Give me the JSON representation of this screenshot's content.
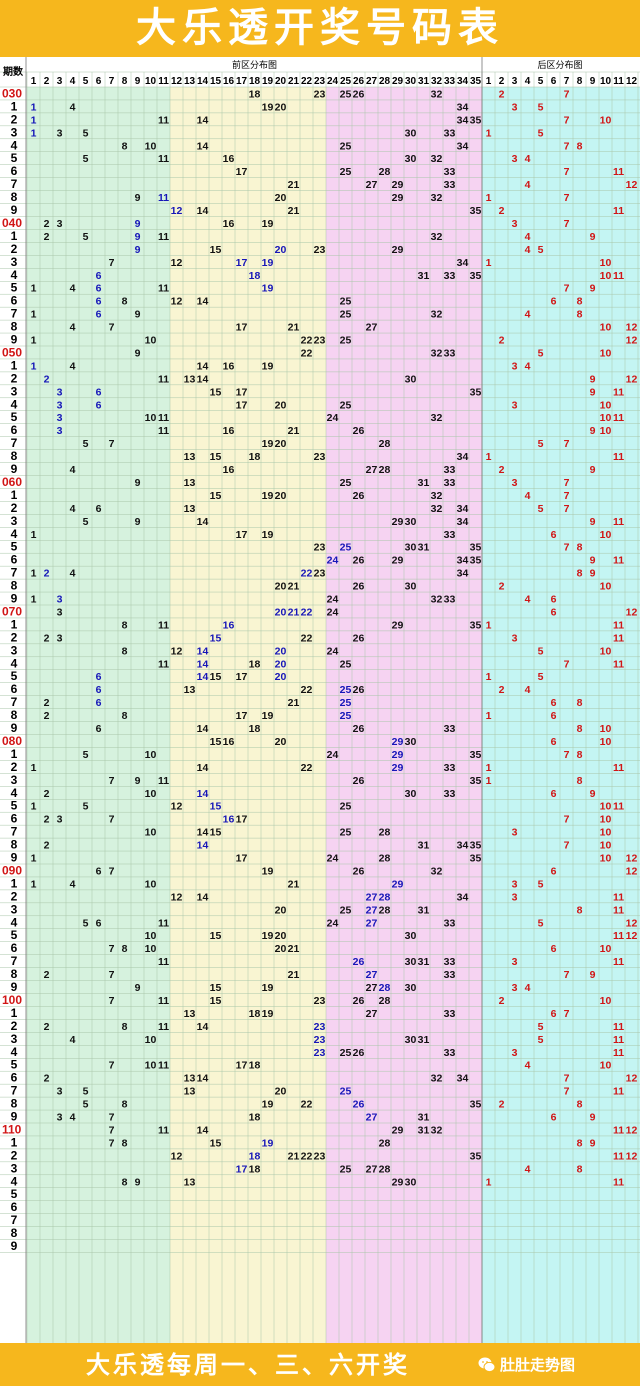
{
  "title": "大乐透开奖号码表",
  "footer": "大乐透每周一、三、六开奖",
  "brand": "肚肚走势图",
  "headers": {
    "period": "期数",
    "front": "前区分布图",
    "back": "后区分布图"
  },
  "colors": {
    "title_bg": "#f6b71d",
    "zone1": "#d6f2de",
    "zone2": "#f9f5d2",
    "zone3": "#f6d3f2",
    "zone4": "#c4f5f3",
    "grid": "#a9c6a9",
    "black": "#111111",
    "blue": "#1616b8",
    "red": "#d11515"
  },
  "front_numbers": [
    "1",
    "2",
    "3",
    "4",
    "5",
    "6",
    "7",
    "8",
    "9",
    "10",
    "11",
    "12",
    "13",
    "14",
    "15",
    "16",
    "17",
    "18",
    "19",
    "20",
    "21",
    "22",
    "23",
    "24",
    "25",
    "26",
    "27",
    "28",
    "29",
    "30",
    "31",
    "32",
    "33",
    "34",
    "35"
  ],
  "back_numbers": [
    "1",
    "2",
    "3",
    "4",
    "5",
    "6",
    "7",
    "8",
    "9",
    "10",
    "11",
    "12"
  ],
  "draws": [
    {
      "p": "030",
      "f": [
        18,
        23,
        25,
        26,
        32
      ],
      "b": [
        2,
        7
      ],
      "blue": []
    },
    {
      "p": "1",
      "f": [
        1,
        4,
        19,
        20,
        34
      ],
      "b": [
        3,
        5
      ],
      "blue": [
        1
      ]
    },
    {
      "p": "2",
      "f": [
        1,
        11,
        14,
        34,
        35
      ],
      "b": [
        7,
        10
      ],
      "blue": [
        1
      ]
    },
    {
      "p": "3",
      "f": [
        1,
        3,
        5,
        30,
        33
      ],
      "b": [
        1,
        5
      ],
      "blue": [
        1
      ]
    },
    {
      "p": "4",
      "f": [
        8,
        10,
        14,
        25,
        34
      ],
      "b": [
        7,
        8
      ],
      "blue": []
    },
    {
      "p": "5",
      "f": [
        5,
        11,
        16,
        30,
        32
      ],
      "b": [
        3,
        4
      ],
      "blue": []
    },
    {
      "p": "6",
      "f": [
        17,
        25,
        28,
        33
      ],
      "b": [
        7,
        11
      ],
      "blue": []
    },
    {
      "p": "7",
      "f": [
        21,
        27,
        29,
        33
      ],
      "b": [
        4,
        12
      ],
      "blue": []
    },
    {
      "p": "8",
      "f": [
        9,
        11,
        20,
        29,
        32
      ],
      "b": [
        1,
        7
      ],
      "blue": [
        10,
        11
      ]
    },
    {
      "p": "9",
      "f": [
        12,
        14,
        21,
        35
      ],
      "b": [
        2,
        11
      ],
      "blue": [
        12
      ]
    },
    {
      "p": "040",
      "f": [
        2,
        3,
        9,
        16,
        19
      ],
      "b": [
        3,
        7
      ],
      "blue": [
        9
      ]
    },
    {
      "p": "1",
      "f": [
        2,
        5,
        9,
        11,
        32
      ],
      "b": [
        4,
        9
      ],
      "blue": [
        9
      ]
    },
    {
      "p": "2",
      "f": [
        9,
        15,
        20,
        23,
        29
      ],
      "b": [
        4,
        5
      ],
      "blue": [
        9,
        20
      ]
    },
    {
      "p": "3",
      "f": [
        7,
        12,
        17,
        19,
        34
      ],
      "b": [
        1,
        10
      ],
      "blue": [
        17,
        19
      ]
    },
    {
      "p": "4",
      "f": [
        6,
        18,
        31,
        33,
        35
      ],
      "b": [
        10,
        11
      ],
      "blue": [
        6,
        18
      ]
    },
    {
      "p": "5",
      "f": [
        1,
        4,
        6,
        11,
        19
      ],
      "b": [
        7,
        9
      ],
      "blue": [
        6,
        19
      ]
    },
    {
      "p": "6",
      "f": [
        6,
        8,
        12,
        14,
        25
      ],
      "b": [
        6,
        8
      ],
      "blue": [
        6
      ]
    },
    {
      "p": "7",
      "f": [
        1,
        6,
        9,
        25,
        32
      ],
      "b": [
        4,
        8
      ],
      "blue": [
        6
      ]
    },
    {
      "p": "8",
      "f": [
        4,
        7,
        17,
        21,
        27
      ],
      "b": [
        10,
        12
      ],
      "blue": []
    },
    {
      "p": "9",
      "f": [
        1,
        10,
        22,
        23,
        25
      ],
      "b": [
        2,
        12
      ],
      "blue": []
    },
    {
      "p": "050",
      "f": [
        9,
        22,
        32,
        33
      ],
      "b": [
        5,
        10
      ],
      "blue": []
    },
    {
      "p": "1",
      "f": [
        1,
        4,
        14,
        16,
        19
      ],
      "b": [
        3,
        4
      ],
      "blue": [
        1
      ]
    },
    {
      "p": "2",
      "f": [
        2,
        11,
        13,
        14,
        30
      ],
      "b": [
        9,
        12
      ],
      "blue": [
        2
      ]
    },
    {
      "p": "3",
      "f": [
        3,
        6,
        15,
        17,
        35
      ],
      "b": [
        9,
        11
      ],
      "blue": [
        3,
        6
      ]
    },
    {
      "p": "4",
      "f": [
        3,
        6,
        17,
        20,
        25
      ],
      "b": [
        3,
        10
      ],
      "blue": [
        3,
        6
      ]
    },
    {
      "p": "5",
      "f": [
        3,
        10,
        11,
        24,
        32
      ],
      "b": [
        10,
        11
      ],
      "blue": [
        3
      ]
    },
    {
      "p": "6",
      "f": [
        3,
        11,
        16,
        21,
        26
      ],
      "b": [
        9,
        10
      ],
      "blue": [
        3
      ]
    },
    {
      "p": "7",
      "f": [
        5,
        7,
        19,
        20,
        28
      ],
      "b": [
        5,
        7
      ],
      "blue": []
    },
    {
      "p": "8",
      "f": [
        13,
        15,
        18,
        23,
        34
      ],
      "b": [
        1,
        11
      ],
      "blue": []
    },
    {
      "p": "9",
      "f": [
        4,
        16,
        27,
        28,
        33
      ],
      "b": [
        2,
        9
      ],
      "blue": []
    },
    {
      "p": "060",
      "f": [
        9,
        13,
        25,
        31,
        33
      ],
      "b": [
        3,
        7
      ],
      "blue": []
    },
    {
      "p": "1",
      "f": [
        15,
        19,
        20,
        26,
        32
      ],
      "b": [
        4,
        7
      ],
      "blue": []
    },
    {
      "p": "2",
      "f": [
        4,
        6,
        13,
        32,
        34
      ],
      "b": [
        5,
        7
      ],
      "blue": []
    },
    {
      "p": "3",
      "f": [
        5,
        9,
        14,
        29,
        30,
        34
      ],
      "b": [
        9,
        11
      ],
      "blue": []
    },
    {
      "p": "4",
      "f": [
        1,
        17,
        19,
        33
      ],
      "b": [
        6,
        10
      ],
      "blue": []
    },
    {
      "p": "5",
      "f": [
        23,
        25,
        30,
        31,
        35
      ],
      "b": [
        7,
        8
      ],
      "blue": [
        25
      ]
    },
    {
      "p": "6",
      "f": [
        24,
        26,
        29,
        34,
        35
      ],
      "b": [
        9,
        11
      ],
      "blue": [
        24
      ]
    },
    {
      "p": "7",
      "f": [
        1,
        2,
        4,
        22,
        23,
        34
      ],
      "b": [
        8,
        9
      ],
      "blue": [
        2,
        22
      ]
    },
    {
      "p": "8",
      "f": [
        20,
        21,
        26,
        30
      ],
      "b": [
        2,
        10
      ],
      "blue": []
    },
    {
      "p": "9",
      "f": [
        1,
        3,
        24,
        32,
        33
      ],
      "b": [
        4,
        6
      ],
      "blue": [
        3
      ]
    },
    {
      "p": "070",
      "f": [
        3,
        20,
        21,
        22,
        24
      ],
      "b": [
        6,
        12
      ],
      "blue": [
        20,
        21,
        22
      ]
    },
    {
      "p": "1",
      "f": [
        8,
        11,
        16,
        29,
        35
      ],
      "b": [
        1,
        11
      ],
      "blue": [
        16
      ]
    },
    {
      "p": "2",
      "f": [
        2,
        3,
        15,
        22,
        26
      ],
      "b": [
        3,
        11
      ],
      "blue": [
        15
      ]
    },
    {
      "p": "3",
      "f": [
        8,
        12,
        14,
        20,
        24
      ],
      "b": [
        5,
        10
      ],
      "blue": [
        14,
        20
      ]
    },
    {
      "p": "4",
      "f": [
        11,
        14,
        18,
        20,
        25
      ],
      "b": [
        7,
        11
      ],
      "blue": [
        14,
        20
      ]
    },
    {
      "p": "5",
      "f": [
        6,
        14,
        15,
        17,
        20
      ],
      "b": [
        1,
        5
      ],
      "blue": [
        6,
        14,
        20
      ]
    },
    {
      "p": "6",
      "f": [
        6,
        13,
        22,
        25,
        26
      ],
      "b": [
        2,
        4
      ],
      "blue": [
        6,
        25
      ]
    },
    {
      "p": "7",
      "f": [
        2,
        6,
        21,
        25
      ],
      "b": [
        6,
        8
      ],
      "blue": [
        6,
        25
      ]
    },
    {
      "p": "8",
      "f": [
        2,
        8,
        17,
        19,
        25
      ],
      "b": [
        1,
        6
      ],
      "blue": [
        25
      ]
    },
    {
      "p": "9",
      "f": [
        6,
        14,
        18,
        26,
        33
      ],
      "b": [
        8,
        10
      ],
      "blue": []
    },
    {
      "p": "080",
      "f": [
        15,
        16,
        20,
        29,
        30
      ],
      "b": [
        6,
        10
      ],
      "blue": [
        29
      ]
    },
    {
      "p": "1",
      "f": [
        5,
        10,
        24,
        29,
        35
      ],
      "b": [
        7,
        8
      ],
      "blue": [
        29
      ]
    },
    {
      "p": "2",
      "f": [
        1,
        14,
        22,
        29,
        33
      ],
      "b": [
        1,
        11
      ],
      "blue": [
        29
      ]
    },
    {
      "p": "3",
      "f": [
        7,
        9,
        11,
        26,
        35
      ],
      "b": [
        1,
        8
      ],
      "blue": []
    },
    {
      "p": "4",
      "f": [
        2,
        10,
        14,
        30,
        33
      ],
      "b": [
        6,
        9
      ],
      "blue": [
        14
      ]
    },
    {
      "p": "5",
      "f": [
        1,
        5,
        12,
        15,
        25
      ],
      "b": [
        10,
        11
      ],
      "blue": [
        15
      ]
    },
    {
      "p": "6",
      "f": [
        2,
        3,
        7,
        16,
        17
      ],
      "b": [
        7,
        10
      ],
      "blue": [
        16
      ]
    },
    {
      "p": "7",
      "f": [
        10,
        14,
        15,
        25,
        28
      ],
      "b": [
        3,
        10
      ],
      "blue": []
    },
    {
      "p": "8",
      "f": [
        2,
        14,
        31,
        34,
        35
      ],
      "b": [
        7,
        10
      ],
      "blue": [
        14
      ]
    },
    {
      "p": "9",
      "f": [
        1,
        17,
        24,
        28,
        35
      ],
      "b": [
        10,
        12
      ],
      "blue": []
    },
    {
      "p": "090",
      "f": [
        6,
        7,
        19,
        26,
        32
      ],
      "b": [
        6,
        12
      ],
      "blue": []
    },
    {
      "p": "1",
      "f": [
        1,
        4,
        10,
        21,
        29
      ],
      "b": [
        3,
        5
      ],
      "blue": [
        29
      ]
    },
    {
      "p": "2",
      "f": [
        12,
        14,
        27,
        28,
        34
      ],
      "b": [
        3,
        11
      ],
      "blue": [
        27,
        28
      ]
    },
    {
      "p": "3",
      "f": [
        20,
        25,
        27,
        28,
        31
      ],
      "b": [
        8,
        11
      ],
      "blue": [
        27
      ]
    },
    {
      "p": "4",
      "f": [
        5,
        6,
        11,
        24,
        27,
        33
      ],
      "b": [
        5,
        12
      ],
      "blue": [
        27
      ]
    },
    {
      "p": "5",
      "f": [
        10,
        15,
        19,
        20,
        30
      ],
      "b": [
        11,
        12
      ],
      "blue": []
    },
    {
      "p": "6",
      "f": [
        7,
        8,
        10,
        20,
        21
      ],
      "b": [
        6,
        10
      ],
      "blue": []
    },
    {
      "p": "7",
      "f": [
        11,
        26,
        30,
        31,
        33
      ],
      "b": [
        3,
        11
      ],
      "blue": [
        26
      ]
    },
    {
      "p": "8",
      "f": [
        2,
        7,
        21,
        27,
        33
      ],
      "b": [
        7,
        9
      ],
      "blue": [
        27
      ]
    },
    {
      "p": "9",
      "f": [
        9,
        15,
        19,
        27,
        28,
        30
      ],
      "b": [
        3,
        4
      ],
      "blue": [
        28
      ]
    },
    {
      "p": "100",
      "f": [
        7,
        11,
        15,
        23,
        26,
        28
      ],
      "b": [
        2,
        10
      ],
      "blue": []
    },
    {
      "p": "1",
      "f": [
        13,
        18,
        19,
        27,
        33
      ],
      "b": [
        6,
        7
      ],
      "blue": []
    },
    {
      "p": "2",
      "f": [
        2,
        8,
        11,
        14,
        23
      ],
      "b": [
        5,
        11
      ],
      "blue": [
        23
      ]
    },
    {
      "p": "3",
      "f": [
        4,
        10,
        23,
        30,
        31
      ],
      "b": [
        5,
        11
      ],
      "blue": [
        23
      ]
    },
    {
      "p": "4",
      "f": [
        23,
        25,
        26,
        33
      ],
      "b": [
        3,
        11
      ],
      "blue": [
        23
      ]
    },
    {
      "p": "5",
      "f": [
        7,
        10,
        11,
        17,
        18
      ],
      "b": [
        4,
        10
      ],
      "blue": []
    },
    {
      "p": "6",
      "f": [
        2,
        13,
        14,
        32,
        34
      ],
      "b": [
        7,
        12
      ],
      "blue": []
    },
    {
      "p": "7",
      "f": [
        3,
        5,
        13,
        20,
        25
      ],
      "b": [
        7,
        11
      ],
      "blue": [
        25
      ]
    },
    {
      "p": "8",
      "f": [
        5,
        8,
        19,
        22,
        26,
        35
      ],
      "b": [
        2,
        8
      ],
      "blue": [
        26
      ]
    },
    {
      "p": "9",
      "f": [
        3,
        4,
        7,
        18,
        27,
        31
      ],
      "b": [
        6,
        9
      ],
      "blue": [
        27
      ]
    },
    {
      "p": "110",
      "f": [
        7,
        11,
        14,
        29,
        31,
        32
      ],
      "b": [
        11,
        12
      ],
      "blue": []
    },
    {
      "p": "1",
      "f": [
        7,
        8,
        15,
        19,
        28
      ],
      "b": [
        8,
        9
      ],
      "blue": [
        19
      ]
    },
    {
      "p": "2",
      "f": [
        12,
        18,
        21,
        22,
        23,
        35
      ],
      "b": [
        11,
        12
      ],
      "blue": [
        18
      ]
    },
    {
      "p": "3",
      "f": [
        17,
        18,
        25,
        27,
        28
      ],
      "b": [
        4,
        8
      ],
      "blue": [
        17
      ]
    },
    {
      "p": "4",
      "f": [
        8,
        9,
        13,
        29,
        30
      ],
      "b": [
        1,
        11
      ],
      "blue": []
    },
    {
      "p": "5",
      "f": [],
      "b": [],
      "blue": []
    },
    {
      "p": "6",
      "f": [],
      "b": [],
      "blue": []
    },
    {
      "p": "7",
      "f": [],
      "b": [],
      "blue": []
    },
    {
      "p": "8",
      "f": [],
      "b": [],
      "blue": []
    },
    {
      "p": "9",
      "f": [],
      "b": [],
      "blue": []
    }
  ]
}
